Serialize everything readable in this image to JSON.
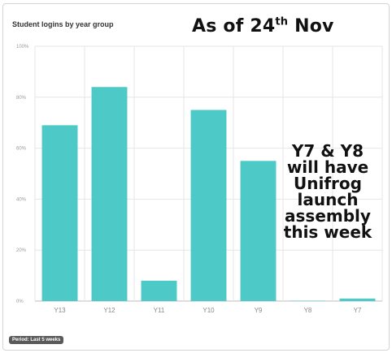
{
  "overlay": {
    "date_prefix": "As of 24",
    "date_suffix": "th",
    "date_month": " Nov",
    "note_lines": [
      "Y7 & Y8",
      "will have",
      "Unifrog",
      "launch",
      "assembly",
      "this week"
    ]
  },
  "period_badge": "Period: Last 5 weeks",
  "colors": {
    "bar": "#4dc9c7",
    "grid": "#e6e6e6",
    "axis": "#bcbcbc"
  },
  "chart_data": {
    "type": "bar",
    "title": "Student logins by year group",
    "xlabel": "",
    "ylabel": "",
    "categories": [
      "Y13",
      "Y12",
      "Y11",
      "Y10",
      "Y9",
      "Y8",
      "Y7"
    ],
    "values": [
      69,
      84,
      8,
      75,
      55,
      0,
      1
    ],
    "ylim": [
      0,
      100
    ],
    "yticks": [
      0,
      20,
      40,
      60,
      80,
      100
    ],
    "ytick_labels": [
      "0%",
      "20%",
      "40%",
      "60%",
      "80%",
      "100%"
    ],
    "grid": true,
    "legend": "none"
  }
}
